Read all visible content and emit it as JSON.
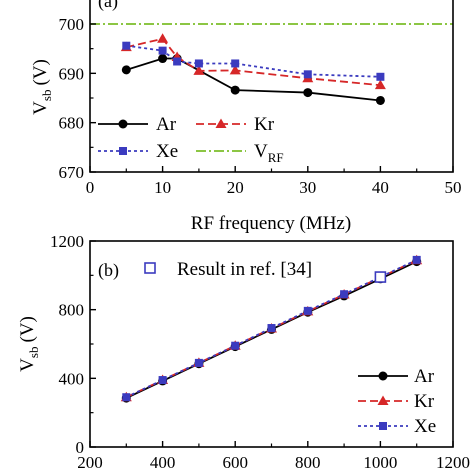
{
  "chart_data": [
    {
      "type": "line",
      "panel_label": "(a)",
      "xlabel": "RF frequency (MHz)",
      "ylabel": "V",
      "ylabel_sub": "sb",
      "ylabel_unit": "(V)",
      "xlim": [
        0,
        50
      ],
      "ylim": [
        670,
        700
      ],
      "xticks": [
        0,
        10,
        20,
        30,
        40,
        50
      ],
      "yticks": [
        670,
        680,
        690,
        700
      ],
      "grid": false,
      "legend_position": "lower-left",
      "series": [
        {
          "name": "Ar",
          "color": "#000000",
          "dash": "solid",
          "marker": "circle",
          "x": [
            5,
            10,
            12,
            20,
            30,
            40
          ],
          "y": [
            690.7,
            693.0,
            693.0,
            686.6,
            686.1,
            684.5
          ]
        },
        {
          "name": "Kr",
          "color": "#d62728",
          "dash": "dashed",
          "marker": "triangle",
          "x": [
            5,
            10,
            12,
            15,
            20,
            30,
            40
          ],
          "y": [
            695.3,
            697.0,
            693.3,
            690.5,
            690.6,
            689.0,
            687.6
          ]
        },
        {
          "name": "Xe",
          "color": "#3b3bbf",
          "dash": "dotted",
          "marker": "square",
          "x": [
            5,
            10,
            12,
            15,
            20,
            30,
            40
          ],
          "y": [
            695.6,
            694.6,
            692.4,
            692.0,
            692.0,
            689.8,
            689.3
          ]
        }
      ],
      "reference_line": {
        "name": "V",
        "name_sub": "RF",
        "y": 700,
        "color": "#7cbf2a",
        "dash": "dash-dot"
      }
    },
    {
      "type": "line",
      "panel_label": "(b)",
      "ylabel": "V",
      "ylabel_sub": "sb",
      "ylabel_unit": "(V)",
      "xlim": [
        200,
        1200
      ],
      "ylim": [
        0,
        1200
      ],
      "xticks": [
        200,
        400,
        600,
        800,
        1000,
        1200
      ],
      "yticks": [
        0,
        400,
        800,
        1200
      ],
      "grid": false,
      "legend_position": "lower-right",
      "series": [
        {
          "name": "Ar",
          "color": "#000000",
          "dash": "solid",
          "marker": "circle",
          "x": [
            300,
            400,
            500,
            600,
            700,
            800,
            900,
            1000,
            1100
          ],
          "y": [
            285,
            385,
            485,
            585,
            685,
            785,
            880,
            980,
            1080
          ]
        },
        {
          "name": "Kr",
          "color": "#d62728",
          "dash": "dashed",
          "marker": "triangle",
          "x": [
            300,
            400,
            500,
            600,
            700,
            800,
            900,
            1000,
            1100
          ],
          "y": [
            290,
            390,
            490,
            590,
            690,
            790,
            888,
            988,
            1088
          ]
        },
        {
          "name": "Xe",
          "color": "#3b3bbf",
          "dash": "dotted",
          "marker": "square",
          "x": [
            300,
            400,
            500,
            600,
            700,
            800,
            900,
            1000,
            1100
          ],
          "y": [
            290,
            390,
            490,
            590,
            693,
            793,
            890,
            990,
            1090
          ]
        }
      ],
      "reference_points": {
        "name": "Result in ref. [34]",
        "color": "#3b3bbf",
        "marker": "open-square",
        "x": [
          1000
        ],
        "y": [
          990
        ]
      }
    }
  ]
}
